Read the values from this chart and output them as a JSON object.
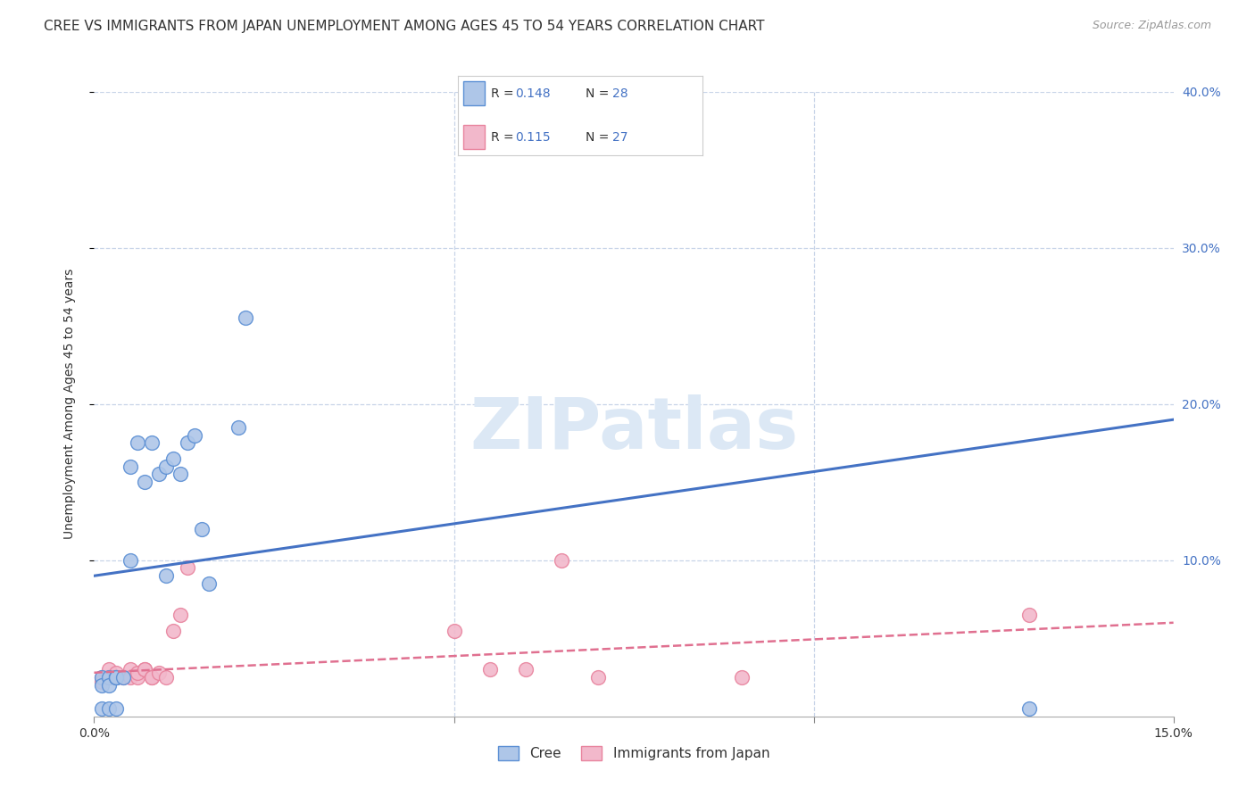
{
  "title": "CREE VS IMMIGRANTS FROM JAPAN UNEMPLOYMENT AMONG AGES 45 TO 54 YEARS CORRELATION CHART",
  "source": "Source: ZipAtlas.com",
  "ylabel": "Unemployment Among Ages 45 to 54 years",
  "xlim": [
    0,
    0.15
  ],
  "ylim": [
    0,
    0.4
  ],
  "cree_color": "#aec6e8",
  "japan_color": "#f2b8cb",
  "cree_edge_color": "#5b8fd4",
  "japan_edge_color": "#e8849e",
  "cree_line_color": "#4472c4",
  "japan_line_color": "#e07090",
  "cree_R": "0.148",
  "cree_N": "28",
  "japan_R": "0.115",
  "japan_N": "27",
  "cree_scatter_x": [
    0.001,
    0.001,
    0.001,
    0.002,
    0.002,
    0.002,
    0.003,
    0.003,
    0.003,
    0.003,
    0.004,
    0.005,
    0.005,
    0.006,
    0.007,
    0.008,
    0.009,
    0.01,
    0.01,
    0.011,
    0.012,
    0.013,
    0.014,
    0.015,
    0.016,
    0.02,
    0.021,
    0.13
  ],
  "cree_scatter_y": [
    0.025,
    0.005,
    0.02,
    0.025,
    0.005,
    0.02,
    0.025,
    0.025,
    0.025,
    0.005,
    0.025,
    0.16,
    0.1,
    0.175,
    0.15,
    0.175,
    0.155,
    0.16,
    0.09,
    0.165,
    0.155,
    0.175,
    0.18,
    0.12,
    0.085,
    0.185,
    0.255,
    0.005
  ],
  "japan_scatter_x": [
    0.001,
    0.001,
    0.002,
    0.002,
    0.003,
    0.003,
    0.004,
    0.005,
    0.005,
    0.006,
    0.006,
    0.007,
    0.007,
    0.008,
    0.008,
    0.009,
    0.01,
    0.011,
    0.012,
    0.013,
    0.05,
    0.055,
    0.06,
    0.065,
    0.07,
    0.09,
    0.13
  ],
  "japan_scatter_y": [
    0.025,
    0.022,
    0.025,
    0.03,
    0.025,
    0.028,
    0.025,
    0.03,
    0.025,
    0.025,
    0.028,
    0.03,
    0.03,
    0.025,
    0.025,
    0.028,
    0.025,
    0.055,
    0.065,
    0.095,
    0.055,
    0.03,
    0.03,
    0.1,
    0.025,
    0.025,
    0.065
  ],
  "cree_trend_x": [
    0.0,
    0.15
  ],
  "cree_trend_y": [
    0.09,
    0.19
  ],
  "japan_trend_x": [
    0.0,
    0.15
  ],
  "japan_trend_y": [
    0.028,
    0.06
  ],
  "background_color": "#ffffff",
  "grid_color": "#c8d4e8",
  "watermark": "ZIPatlas",
  "title_fontsize": 11,
  "axis_label_fontsize": 10,
  "tick_fontsize": 10,
  "source_fontsize": 9
}
